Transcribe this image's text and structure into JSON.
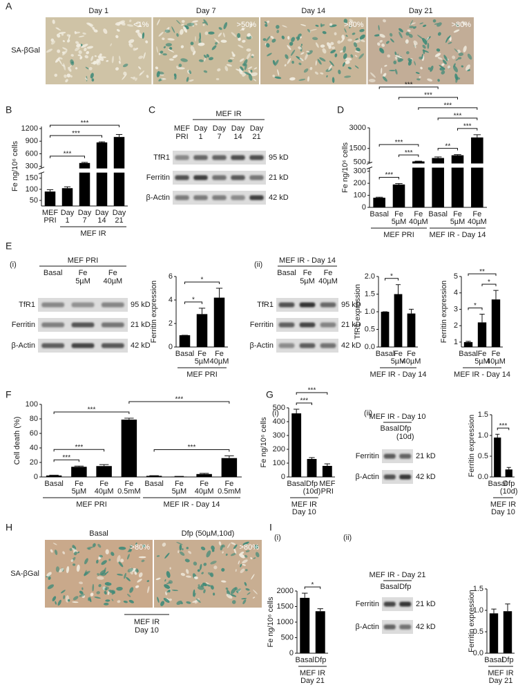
{
  "panel_labels": [
    "A",
    "B",
    "C",
    "D",
    "E",
    "F",
    "G",
    "H",
    "I"
  ],
  "sublabels": [
    "(i)",
    "(ii)",
    "(i)",
    "(ii)",
    "(i)",
    "(ii)"
  ],
  "micrographs": [
    {
      "row_label": "SA-βGal",
      "panels": [
        {
          "title": "Day 1",
          "percent": "<1%"
        },
        {
          "title": "Day 7",
          "percent": ">50%"
        },
        {
          "title": "Day 14",
          "percent": ">80%"
        },
        {
          "title": "Day 21",
          "percent": ">80%"
        }
      ]
    },
    {
      "row_label": "SA-βGal",
      "panels": [
        {
          "title": "Basal",
          "percent": ">80%"
        },
        {
          "title": "Dfp (50µM,10d)",
          "percent": ">80%"
        }
      ],
      "group": [
        "MEF IR",
        "Day 10"
      ]
    }
  ],
  "blots": [
    {
      "header": "MEF IR",
      "header_span": [
        1,
        4
      ],
      "lanes": [
        [
          "MEF",
          "PRI"
        ],
        [
          "Day",
          "1"
        ],
        [
          "Day",
          "7"
        ],
        [
          "Day",
          "14"
        ],
        [
          "Day",
          "21"
        ]
      ],
      "rows": [
        {
          "name": "TfR1",
          "size": "95 kD"
        },
        {
          "name": "Ferritin",
          "size": "21 kD"
        },
        {
          "name": "β-Actin",
          "size": "42 kD"
        }
      ]
    },
    {
      "header": "MEF PRI",
      "lanes": [
        [
          "Basal"
        ],
        [
          "Fe",
          "5µM"
        ],
        [
          "Fe",
          "40µM"
        ]
      ],
      "rows": [
        {
          "name": "TfR1",
          "size": "95 kD"
        },
        {
          "name": "Ferritin",
          "size": "21 kD"
        },
        {
          "name": "β-Actin",
          "size": "42 kD"
        }
      ]
    },
    {
      "header": "MEF IR - Day 14",
      "lanes": [
        [
          "Basal"
        ],
        [
          "Fe",
          "5µM"
        ],
        [
          "Fe",
          "40µM"
        ]
      ],
      "rows": [
        {
          "name": "TfR1",
          "size": "95 kD"
        },
        {
          "name": "Ferritin",
          "size": "21 kD"
        },
        {
          "name": "β-Actin",
          "size": "42 kD"
        }
      ]
    },
    {
      "header": "MEF IR - Day 10",
      "lanes": [
        [
          "Basal"
        ],
        [
          "Dfp",
          "(10d)"
        ]
      ],
      "rows": [
        {
          "name": "Ferritin",
          "size": "21 kD"
        },
        {
          "name": "β-Actin",
          "size": "42 kD"
        }
      ]
    },
    {
      "header": "MEF IR - Day 21",
      "lanes": [
        [
          "Basal"
        ],
        [
          "Dfp"
        ]
      ],
      "rows": [
        {
          "name": "Ferritin",
          "size": "21 kD"
        },
        {
          "name": "β-Actin",
          "size": "42 kD"
        }
      ]
    }
  ],
  "chart_data": [
    {
      "type": "bar",
      "y_label": "Fe ng/10⁶ cells",
      "color": "#000000",
      "categories": [
        [
          "MEF",
          "PRI"
        ],
        [
          "Day",
          "1"
        ],
        [
          "Day",
          "7"
        ],
        [
          "Day",
          "14"
        ],
        [
          "Day",
          "21"
        ]
      ],
      "values": [
        90,
        105,
        380,
        870,
        1000
      ],
      "errors": [
        8,
        6,
        15,
        15,
        60
      ],
      "ylim": [
        [
          25,
          175
        ],
        [
          250,
          1250
        ]
      ],
      "yticks": [
        [
          50,
          100,
          150
        ],
        [
          300,
          600,
          900,
          1200
        ]
      ],
      "comparisons": [
        {
          "pair": [
            0,
            2
          ],
          "label": "***"
        },
        {
          "pair": [
            0,
            3
          ],
          "label": "***"
        },
        {
          "pair": [
            0,
            4
          ],
          "label": "***"
        }
      ],
      "groups": [
        {
          "label": [
            "MEF IR"
          ],
          "span": [
            1,
            4
          ]
        }
      ]
    },
    {
      "type": "bar",
      "y_label": "Fe ng/10⁶ cells",
      "color": "#000000",
      "categories": [
        [
          "Basal"
        ],
        [
          "Fe",
          "5µM"
        ],
        [
          "Fe",
          "40µM"
        ],
        [
          "Basal"
        ],
        [
          "Fe",
          "5µM"
        ],
        [
          "Fe",
          "40µM"
        ]
      ],
      "values": [
        80,
        190,
        550,
        800,
        1000,
        2300
      ],
      "errors": [
        5,
        8,
        20,
        80,
        50,
        200
      ],
      "ylim": [
        [
          0,
          330
        ],
        [
          400,
          3000
        ]
      ],
      "yticks": [
        [
          0,
          100,
          200,
          300
        ],
        [
          500,
          1500,
          3000
        ]
      ],
      "comparisons": [
        {
          "pair": [
            0,
            1
          ],
          "label": "***"
        },
        {
          "pair": [
            1,
            2
          ],
          "label": "***"
        },
        {
          "pair": [
            0,
            2
          ],
          "label": "***"
        },
        {
          "pair": [
            3,
            4
          ],
          "label": "**"
        },
        {
          "pair": [
            4,
            5
          ],
          "label": "***"
        },
        {
          "pair": [
            3,
            5
          ],
          "label": "***"
        },
        {
          "pair": [
            2,
            5
          ],
          "label": "***"
        },
        {
          "pair": [
            1,
            4
          ],
          "label": "***"
        },
        {
          "pair": [
            0,
            3
          ],
          "label": "***"
        }
      ],
      "groups": [
        {
          "label": [
            "MEF PRI"
          ],
          "span": [
            0,
            2
          ]
        },
        {
          "label": [
            "MEF IR - Day 14"
          ],
          "span": [
            3,
            5
          ]
        }
      ]
    },
    {
      "type": "bar",
      "y_label": "Ferritin expression",
      "color": "#000000",
      "categories": [
        [
          "Basal"
        ],
        [
          "Fe",
          "5µM"
        ],
        [
          "Fe",
          "40µM"
        ]
      ],
      "values": [
        1,
        2.8,
        4.2
      ],
      "errors": [
        0,
        0.5,
        0.8
      ],
      "ylim": [
        0,
        6
      ],
      "yticks": [
        0,
        2,
        4,
        6
      ],
      "comparisons": [
        {
          "pair": [
            0,
            1
          ],
          "label": "*"
        },
        {
          "pair": [
            0,
            2
          ],
          "label": "*"
        }
      ],
      "groups": [
        {
          "label": [
            "MEF PRI"
          ],
          "span": [
            0,
            2
          ]
        }
      ]
    },
    {
      "type": "bar",
      "y_label": "TfR1 expression",
      "color": "#000000",
      "categories": [
        [
          "Basal"
        ],
        [
          "Fe",
          "5µM"
        ],
        [
          "Fe",
          "40µM"
        ]
      ],
      "values": [
        1,
        1.5,
        0.95
      ],
      "errors": [
        0,
        0.27,
        0.12
      ],
      "ylim": [
        0,
        2
      ],
      "yticks": [
        {
          "value": 0,
          "label": "0.0"
        },
        0.5,
        {
          "value": 1,
          "label": "1.0"
        },
        1.5,
        {
          "value": 2,
          "label": "2.0"
        }
      ],
      "comparisons": [
        {
          "pair": [
            0,
            1
          ],
          "label": "*"
        }
      ],
      "groups": [
        {
          "label": [
            "MEF IR - Day 14"
          ],
          "span": [
            0,
            2
          ]
        }
      ]
    },
    {
      "type": "bar",
      "y_label": "Ferritin expression",
      "color": "#000000",
      "categories": [
        [
          "Basal"
        ],
        [
          "Fe",
          "5µM"
        ],
        [
          "Fe",
          "40µM"
        ]
      ],
      "values": [
        1,
        2.2,
        3.6
      ],
      "errors": [
        0.05,
        0.5,
        0.55
      ],
      "ylim": [
        0.7,
        5
      ],
      "yticks": [
        1,
        2,
        3,
        4,
        5
      ],
      "comparisons": [
        {
          "pair": [
            0,
            1
          ],
          "label": "*"
        },
        {
          "pair": [
            1,
            2
          ],
          "label": "*"
        },
        {
          "pair": [
            0,
            2
          ],
          "label": "**"
        }
      ],
      "groups": [
        {
          "label": [
            "MEF IR - Day 14"
          ],
          "span": [
            0,
            2
          ]
        }
      ]
    },
    {
      "type": "bar",
      "y_label": "Cell death (%)",
      "color": "#000000",
      "categories": [
        [
          "Basal"
        ],
        [
          "Fe",
          "5µM"
        ],
        [
          "Fe",
          "40µM"
        ],
        [
          "Fe",
          "0.5mM"
        ],
        [
          "Basal"
        ],
        [
          "Fe",
          "5µM"
        ],
        [
          "Fe",
          "40µM"
        ],
        [
          "Fe",
          "0.5mM"
        ]
      ],
      "values": [
        2,
        14,
        15,
        79,
        1.5,
        0.5,
        4,
        26
      ],
      "errors": [
        0.5,
        1,
        2,
        2,
        0.3,
        0.3,
        1,
        3
      ],
      "ylim": [
        0,
        100
      ],
      "yticks": [
        0,
        20,
        40,
        60,
        80,
        100
      ],
      "comparisons": [
        {
          "pair": [
            0,
            1
          ],
          "label": "***"
        },
        {
          "pair": [
            0,
            2
          ],
          "label": "***"
        },
        {
          "pair": [
            0,
            3
          ],
          "label": "***"
        },
        {
          "pair": [
            4,
            7
          ],
          "label": "***"
        },
        {
          "pair": [
            3,
            7
          ],
          "label": "***"
        }
      ],
      "groups": [
        {
          "label": [
            "MEF PRI"
          ],
          "span": [
            0,
            3
          ]
        },
        {
          "label": [
            "MEF IR - Day 14"
          ],
          "span": [
            4,
            7
          ]
        }
      ]
    },
    {
      "type": "bar",
      "y_label": "Fe ng/10⁶ cells",
      "color": "#000000",
      "categories": [
        [
          "Basal"
        ],
        [
          "Dfp",
          "(10d)"
        ],
        [
          "MEF",
          "PRI"
        ]
      ],
      "values": [
        460,
        130,
        80
      ],
      "errors": [
        30,
        10,
        15
      ],
      "ylim": [
        0,
        500
      ],
      "yticks": [
        0,
        100,
        200,
        300,
        400,
        500
      ],
      "comparisons": [
        {
          "pair": [
            0,
            1
          ],
          "label": "***"
        },
        {
          "pair": [
            0,
            2
          ],
          "label": "***"
        }
      ],
      "groups": [
        {
          "label": [
            "MEF IR",
            "Day 10"
          ],
          "span": [
            0,
            1
          ]
        }
      ]
    },
    {
      "type": "bar",
      "y_label": "Ferritin expression",
      "color": "#000000",
      "categories": [
        [
          "Basal"
        ],
        [
          "Dfp",
          "(10d)"
        ]
      ],
      "values": [
        0.95,
        0.18
      ],
      "errors": [
        0.08,
        0.05
      ],
      "ylim": [
        0,
        1.5
      ],
      "yticks": [
        {
          "value": 0,
          "label": "0.0"
        },
        0.5,
        {
          "value": 1,
          "label": "1.0"
        },
        1.5
      ],
      "comparisons": [
        {
          "pair": [
            0,
            1
          ],
          "label": "***"
        }
      ],
      "groups": [
        {
          "label": [
            "MEF IR",
            "Day 10"
          ],
          "span": [
            0,
            1
          ]
        }
      ]
    },
    {
      "type": "bar",
      "y_label": "Fe ng/10⁶ cells",
      "color": "#000000",
      "categories": [
        [
          "Basal"
        ],
        [
          "Dfp"
        ]
      ],
      "values": [
        1780,
        1350
      ],
      "errors": [
        150,
        80
      ],
      "ylim": [
        0,
        2000
      ],
      "yticks": [
        0,
        500,
        1000,
        1500,
        2000
      ],
      "comparisons": [
        {
          "pair": [
            0,
            1
          ],
          "label": "*"
        }
      ],
      "groups": [
        {
          "label": [
            "MEF IR",
            "Day 21"
          ],
          "span": [
            0,
            1
          ]
        }
      ]
    },
    {
      "type": "bar",
      "y_label": "Ferritin expression",
      "color": "#000000",
      "categories": [
        [
          "Basal"
        ],
        [
          "Dfp"
        ]
      ],
      "values": [
        0.93,
        0.98
      ],
      "errors": [
        0.1,
        0.17
      ],
      "ylim": [
        0,
        1.5
      ],
      "yticks": [
        {
          "value": 0,
          "label": "0.0"
        },
        0.5,
        {
          "value": 1,
          "label": "1.0"
        },
        1.5
      ],
      "groups": [
        {
          "label": [
            "MEF IR",
            "Day 21"
          ],
          "span": [
            0,
            1
          ]
        }
      ]
    }
  ]
}
